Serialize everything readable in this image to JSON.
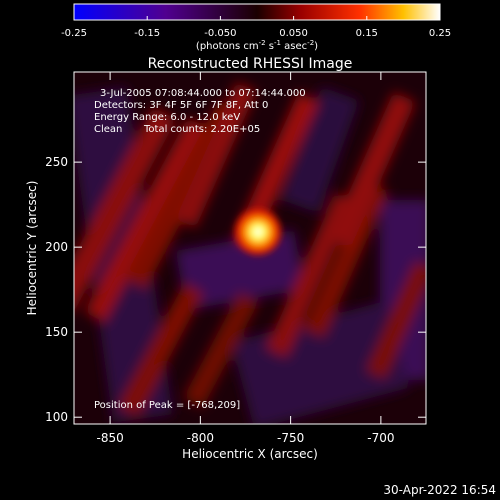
{
  "chart_data": {
    "type": "heatmap",
    "title": "Reconstructed RHESSI Image",
    "xlabel": "Heliocentric X (arcsec)",
    "ylabel": "Heliocentric Y (arcsec)",
    "xlim": [
      -870,
      -675
    ],
    "ylim": [
      96,
      303
    ],
    "x_ticks": [
      -850,
      -800,
      -750,
      -700
    ],
    "y_ticks": [
      100,
      150,
      200,
      250
    ],
    "colorbar": {
      "range": [
        -0.25,
        0.25
      ],
      "ticks": [
        "-0.25",
        "-0.15",
        "-0.050",
        "0.050",
        "0.15",
        "0.25"
      ],
      "unit_prefix": "(photons cm",
      "unit_exp1": "-2",
      "unit_mid": " s",
      "unit_exp2": "-1",
      "unit_mid2": " asec",
      "unit_exp3": "-2",
      "unit_suffix": ")"
    },
    "annotations": {
      "time_range": "3-Jul-2005 07:08:44.000 to 07:14:44.000",
      "detectors": "Detectors: 3F 4F 5F 6F 7F 8F, Att 0",
      "energy": "Energy Range: 6.0 - 12.0 keV",
      "clean_label": "Clean",
      "counts": "Total counts: 2.20E+05",
      "peak": "Position of Peak = [-768,209]"
    },
    "peak": {
      "x": -768,
      "y": 209
    },
    "timestamp": "30-Apr-2022 16:54"
  }
}
